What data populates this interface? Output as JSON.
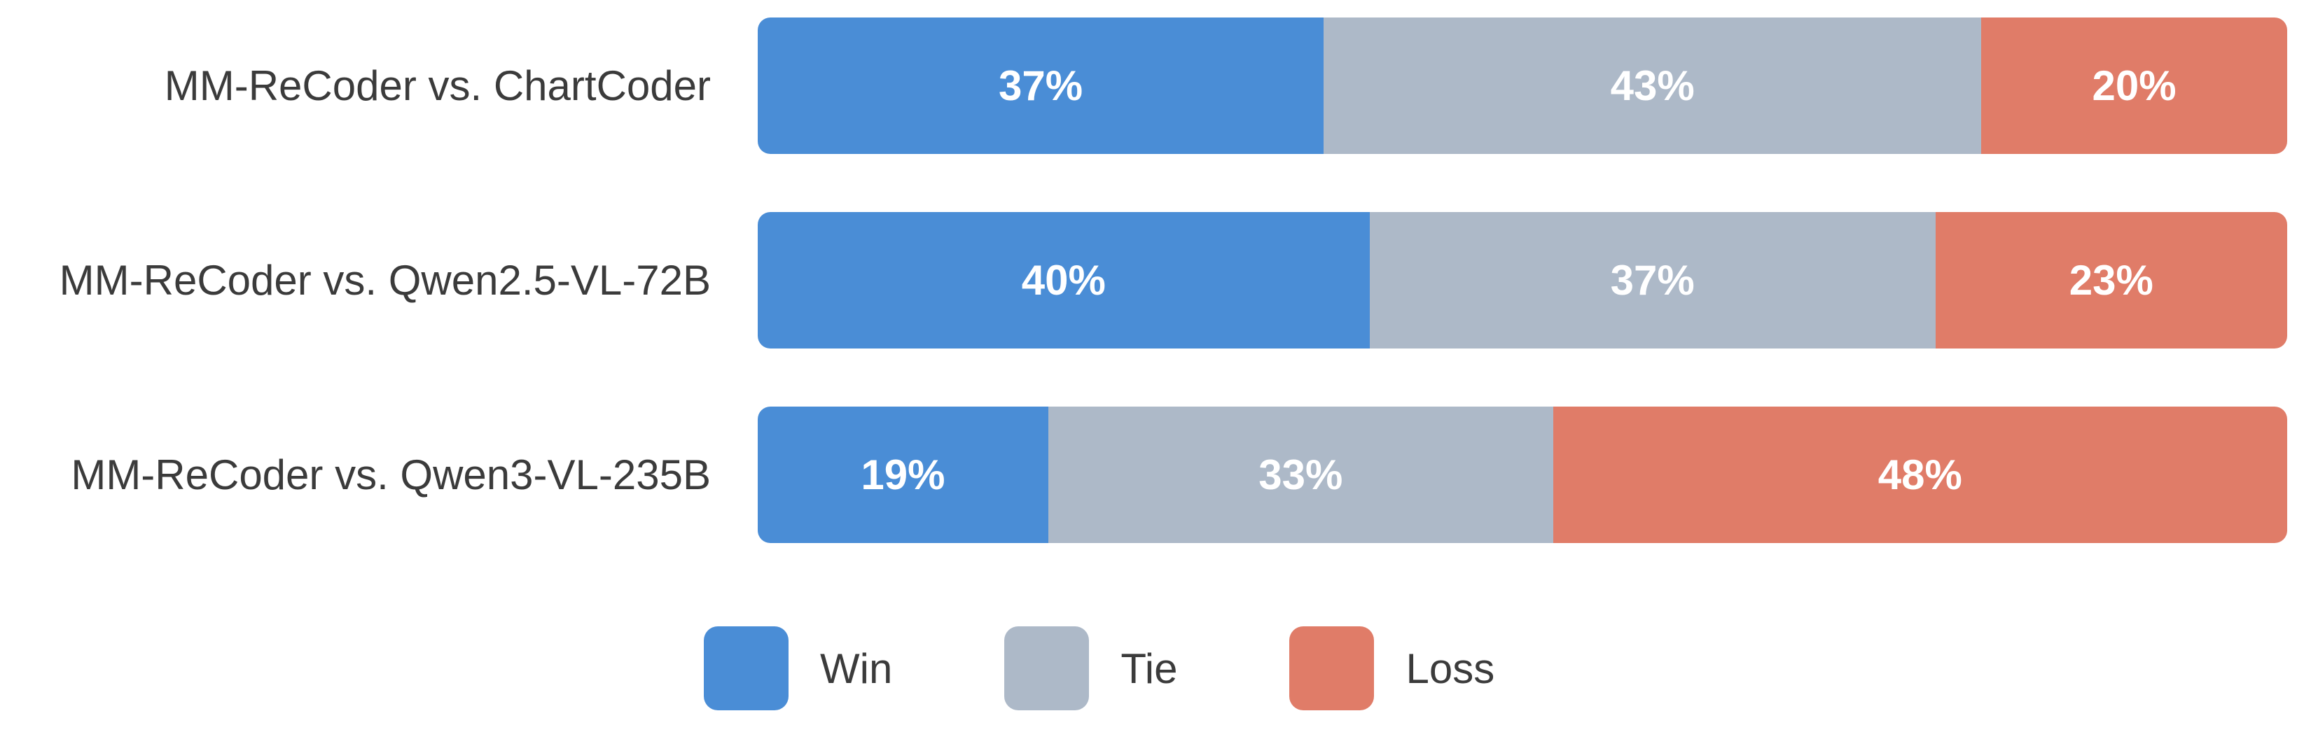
{
  "chart_data": {
    "type": "bar",
    "orientation": "horizontal",
    "stacked": true,
    "units": "percent",
    "title": "",
    "xlabel": "",
    "ylabel": "",
    "xlim": [
      0,
      100
    ],
    "grid": false,
    "legend_position": "bottom",
    "value_label_style": "inside, centered, white, bold",
    "categories": [
      "MM-ReCoder vs. ChartCoder",
      "MM-ReCoder vs. Qwen2.5-VL-72B",
      "MM-ReCoder vs. Qwen3-VL-235B"
    ],
    "series": [
      {
        "name": "Win",
        "color": "#4A8DD6",
        "values": [
          37,
          40,
          19
        ],
        "labels": [
          "37%",
          "40%",
          "19%"
        ]
      },
      {
        "name": "Tie",
        "color": "#ADB9C8",
        "values": [
          43,
          37,
          33
        ],
        "labels": [
          "43%",
          "37%",
          "33%"
        ]
      },
      {
        "name": "Loss",
        "color": "#E07C68",
        "values": [
          20,
          23,
          48
        ],
        "labels": [
          "20%",
          "23%",
          "48%"
        ]
      }
    ]
  },
  "styles": {
    "background": "#ffffff",
    "label_text_color": "#3b3b3b",
    "value_text_color": "#ffffff"
  }
}
